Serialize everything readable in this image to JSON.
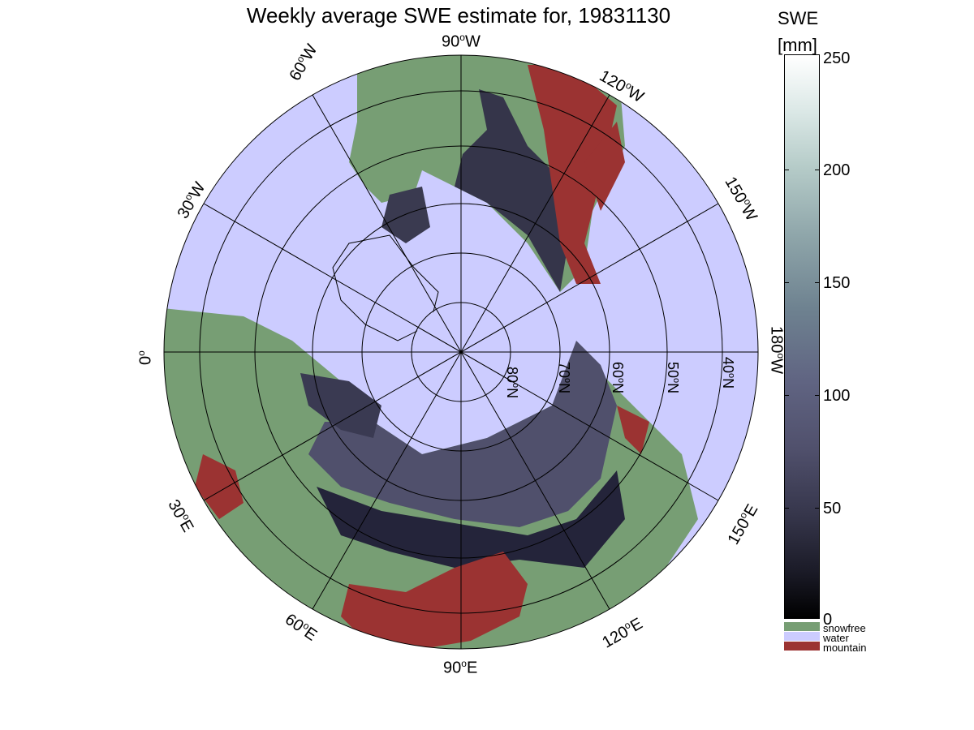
{
  "title": "Weekly average SWE estimate for, 19831130",
  "longitude_labels": [
    {
      "id": "lon-90w",
      "text": "90",
      "suffix": "W"
    },
    {
      "id": "lon-60w",
      "text": "60",
      "suffix": "W"
    },
    {
      "id": "lon-30w",
      "text": "30",
      "suffix": "W"
    },
    {
      "id": "lon-0",
      "text": "0",
      "suffix": ""
    },
    {
      "id": "lon-30e",
      "text": "30",
      "suffix": "E"
    },
    {
      "id": "lon-60e",
      "text": "60",
      "suffix": "E"
    },
    {
      "id": "lon-90e",
      "text": "90",
      "suffix": "E"
    },
    {
      "id": "lon-120e",
      "text": "120",
      "suffix": "E"
    },
    {
      "id": "lon-150e",
      "text": "150",
      "suffix": "E"
    },
    {
      "id": "lon-180w",
      "text": "180",
      "suffix": "W"
    },
    {
      "id": "lon-150w",
      "text": "150",
      "suffix": "W"
    },
    {
      "id": "lon-120w",
      "text": "120",
      "suffix": "W"
    }
  ],
  "latitude_labels": [
    "80",
    "70",
    "60",
    "50",
    "40"
  ],
  "latitude_suffix": "N",
  "degree_symbol": "o",
  "colorbar": {
    "title_line1": "SWE",
    "title_line2": "[mm]",
    "ticks": [
      "250",
      "200",
      "150",
      "100",
      "50",
      "0"
    ],
    "range": [
      0,
      250
    ],
    "categories": [
      {
        "label": "snowfree",
        "color": "#779e74"
      },
      {
        "label": "water",
        "color": "#ccccff"
      },
      {
        "label": "mountain",
        "color": "#9b3332"
      }
    ]
  },
  "colors": {
    "water": "#ccccff",
    "land": "#779e74",
    "mountain": "#9b3332",
    "snow_low": "#1a1a26",
    "snow_mid": "#50506c"
  }
}
